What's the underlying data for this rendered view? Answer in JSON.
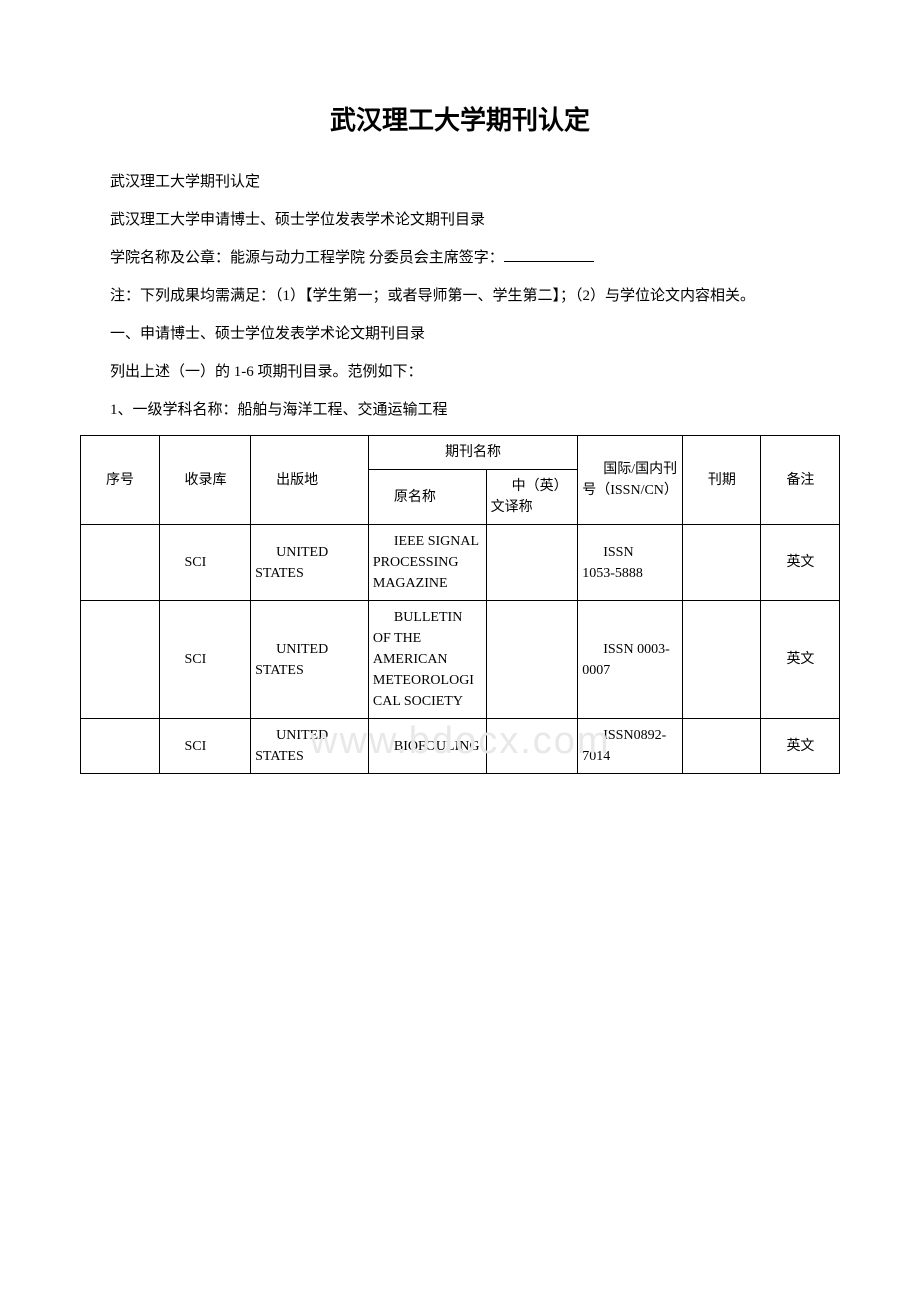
{
  "title": "武汉理工大学期刊认定",
  "para1": "武汉理工大学期刊认定",
  "para2": "武汉理工大学申请博士、硕士学位发表学术论文期刊目录",
  "para3_prefix": "学院名称及公章：能源与动力工程学院 分委员会主席签字：",
  "para4": "注：下列成果均需满足：（1）【学生第一；或者导师第一、学生第二】；（2）与学位论文内容相关。",
  "para5": "一、申请博士、硕士学位发表学术论文期刊目录",
  "para6": "列出上述（一）的 1-6 项期刊目录。范例如下：",
  "para7": "1、一级学科名称：船舶与海洋工程、交通运输工程",
  "watermark": "www.bdocx.com",
  "table": {
    "headers": {
      "seq": "序号",
      "db": "收录库",
      "pub": "出版地",
      "journal_name": "期刊名称",
      "orig": "原名称",
      "trans": "中（英）文译称",
      "issn": "国际/国内刊号（ISSN/CN）",
      "period": "刊期",
      "note": "备注"
    },
    "rows": [
      {
        "seq": "",
        "db": "SCI",
        "pub": "UNITED STATES",
        "orig": "IEEE SIGNAL PROCESSING MAGAZINE",
        "trans": "",
        "issn": "ISSN\n1053-5888",
        "period": "",
        "note": "英文"
      },
      {
        "seq": "",
        "db": "SCI",
        "pub": "UNITED STATES",
        "orig": "BULLETIN OF THE AMERICAN METEOROLOGICAL SOCIETY",
        "trans": "",
        "issn": "ISSN 0003-0007",
        "period": "",
        "note": "英文"
      },
      {
        "seq": "",
        "db": "SCI",
        "pub": "UNITED STATES",
        "orig": "BIOFOULING",
        "trans": "",
        "issn": "ISSN0892-7014",
        "period": "",
        "note": "英文"
      }
    ]
  }
}
